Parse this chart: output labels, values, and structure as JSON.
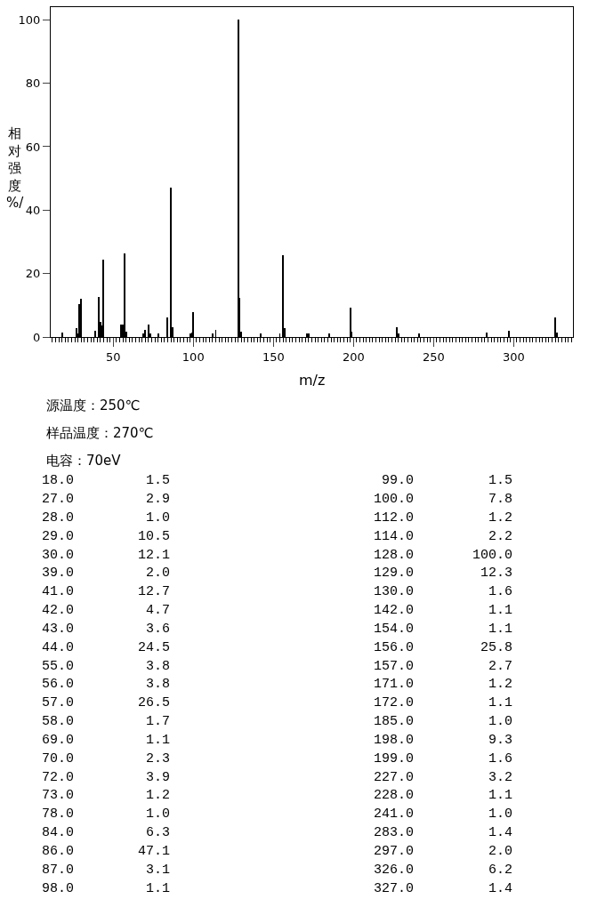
{
  "chart_data": {
    "type": "bar",
    "xlabel": "m/z",
    "ylabel": "相对强度%/",
    "x": [
      18,
      27,
      28,
      29,
      30,
      39,
      41,
      42,
      43,
      44,
      55,
      56,
      57,
      58,
      69,
      70,
      72,
      73,
      78,
      84,
      86,
      87,
      98,
      99,
      100,
      112,
      114,
      128,
      129,
      130,
      142,
      154,
      156,
      157,
      171,
      172,
      185,
      198,
      199,
      227,
      228,
      241,
      283,
      297,
      326,
      327
    ],
    "values": [
      1.5,
      2.9,
      1.0,
      10.5,
      12.1,
      2.0,
      12.7,
      4.7,
      3.6,
      24.5,
      3.8,
      3.8,
      26.5,
      1.7,
      1.1,
      2.3,
      3.9,
      1.2,
      1.0,
      6.3,
      47.1,
      3.1,
      1.1,
      1.5,
      7.8,
      1.2,
      2.2,
      100.0,
      12.3,
      1.6,
      1.1,
      1.1,
      25.8,
      2.7,
      1.2,
      1.1,
      1.0,
      9.3,
      1.6,
      3.2,
      1.1,
      1.0,
      1.4,
      2.0,
      6.2,
      1.4
    ],
    "color": "#000000",
    "xlim": [
      11,
      337
    ],
    "xticks": [
      50,
      100,
      150,
      200,
      250,
      300
    ],
    "ylim": [
      0,
      104
    ],
    "yticks": [
      0,
      20,
      40,
      60,
      80,
      100
    ],
    "annotations": [
      "源温度：250℃",
      "样品温度：270℃",
      "电容：70eV",
      "18.0",
      "1.5",
      "27.0",
      "2.9",
      "28.0",
      "1.0",
      "29.0",
      "10.5",
      "30.0",
      "12.1",
      "39.0",
      "2.0",
      "41.0",
      "12.7",
      "42.0",
      "4.7",
      "43.0",
      "3.6",
      "44.0",
      "24.5",
      "55.0",
      "3.8",
      "56.0",
      "3.8",
      "57.0",
      "26.5",
      "58.0",
      "1.7",
      "69.0",
      "1.1",
      "70.0",
      "2.3",
      "72.0",
      "3.9",
      "73.0",
      "1.2",
      "78.0",
      "1.0",
      "84.0",
      "6.3",
      "86.0",
      "47.1",
      "87.0",
      "3.1",
      "98.0",
      "1.1",
      "99.0",
      "1.5",
      "100.0",
      "7.8",
      "112.0",
      "1.2",
      "114.0",
      "2.2",
      "128.0",
      "100.0",
      "129.0",
      "12.3",
      "130.0",
      "1.6",
      "142.0",
      "1.1",
      "154.0",
      "1.1",
      "156.0",
      "25.8",
      "157.0",
      "2.7",
      "171.0",
      "1.2",
      "172.0",
      "1.1",
      "185.0",
      "1.0",
      "198.0",
      "9.3",
      "199.0",
      "1.6",
      "227.0",
      "3.2",
      "228.0",
      "1.1",
      "241.0",
      "1.0",
      "283.0",
      "1.4",
      "297.0",
      "2.0",
      "326.0",
      "6.2",
      "327.0",
      "1.4"
    ]
  }
}
